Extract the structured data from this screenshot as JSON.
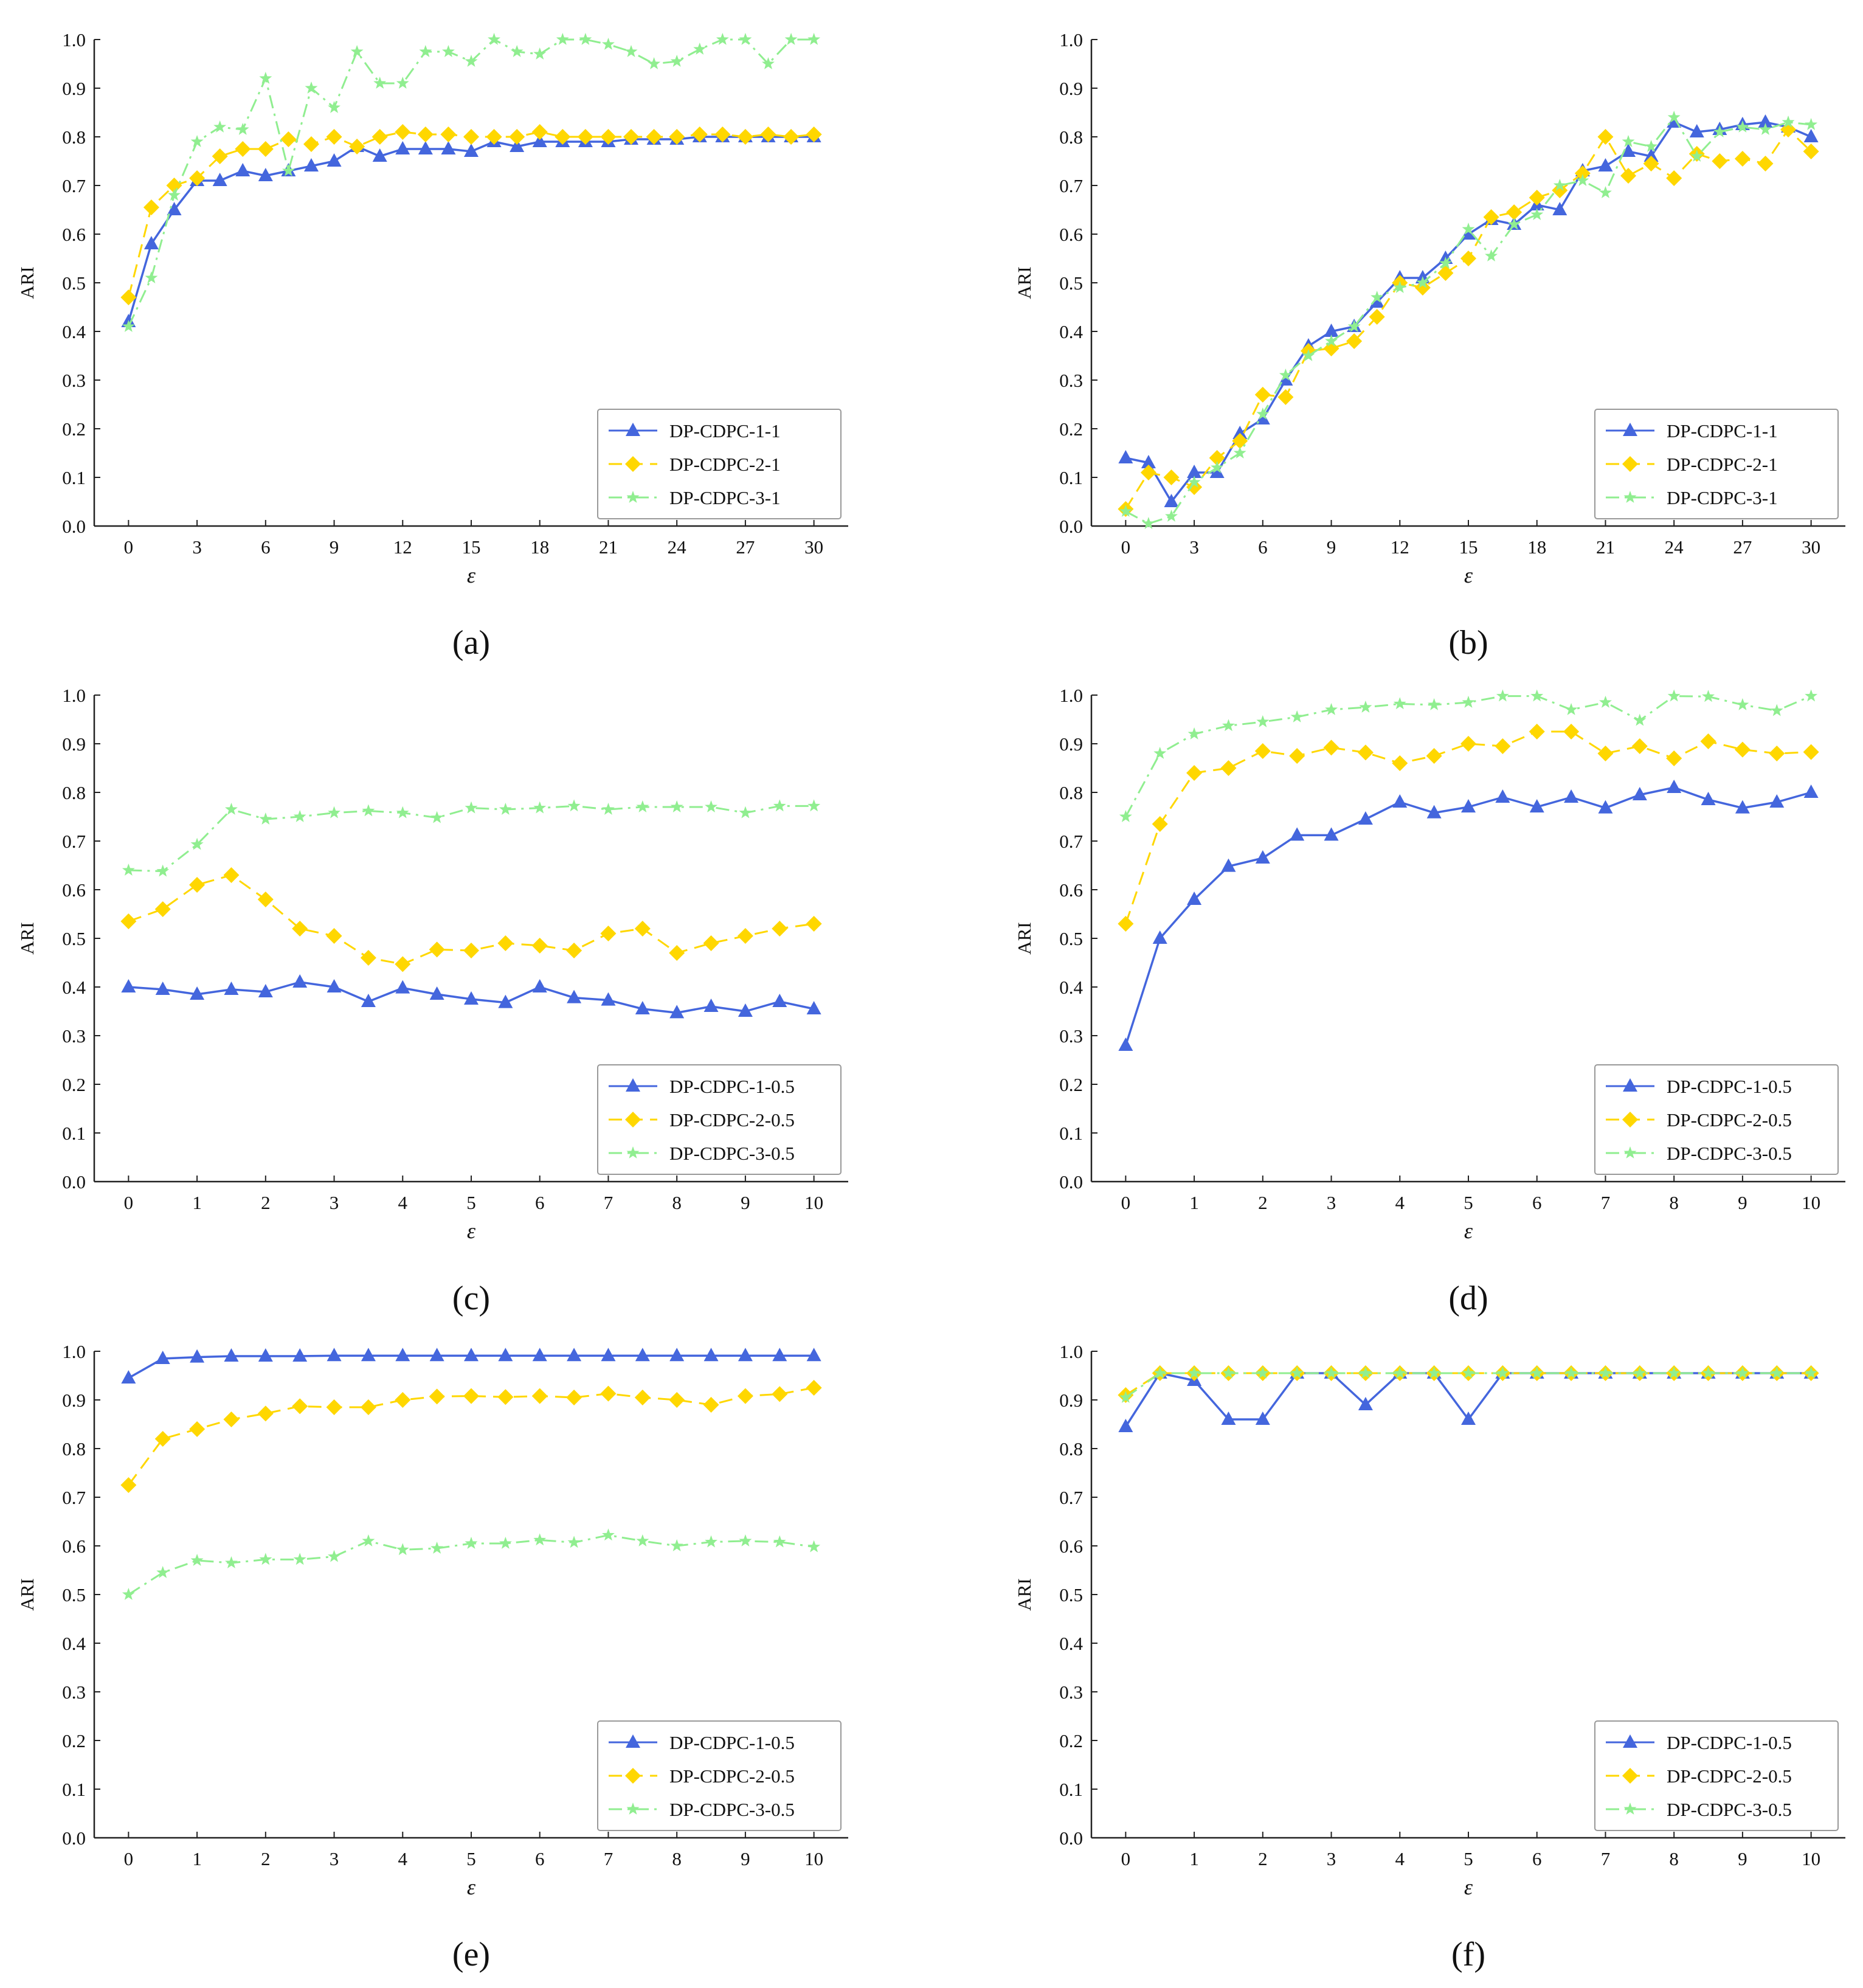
{
  "colors": {
    "series1": "#4466DD",
    "series2": "#FFD700",
    "series3": "#90EE90",
    "axis": "#222222"
  },
  "chart_data": [
    {
      "type": "line",
      "panel_label": "(a)",
      "xlabel": "ε",
      "ylabel": "ARI",
      "xlim": [
        -1.5,
        31.5
      ],
      "ylim": [
        0,
        1.0
      ],
      "xticks": [
        0,
        3,
        6,
        9,
        12,
        15,
        18,
        21,
        24,
        27,
        30
      ],
      "yticks": [
        0.0,
        0.1,
        0.2,
        0.3,
        0.4,
        0.5,
        0.6,
        0.7,
        0.8,
        0.9,
        1.0
      ],
      "legend_position": "lower-right",
      "x": [
        0,
        1,
        2,
        3,
        4,
        5,
        6,
        7,
        8,
        9,
        10,
        11,
        12,
        13,
        14,
        15,
        16,
        17,
        18,
        19,
        20,
        21,
        22,
        23,
        24,
        25,
        26,
        27,
        28,
        29,
        30
      ],
      "series": [
        {
          "name": "DP-CDPC-1-1",
          "values": [
            0.42,
            0.58,
            0.65,
            0.71,
            0.71,
            0.73,
            0.72,
            0.73,
            0.74,
            0.75,
            0.78,
            0.76,
            0.775,
            0.775,
            0.775,
            0.77,
            0.79,
            0.78,
            0.79,
            0.79,
            0.79,
            0.79,
            0.795,
            0.795,
            0.795,
            0.8,
            0.8,
            0.8,
            0.8,
            0.8,
            0.8
          ]
        },
        {
          "name": "DP-CDPC-2-1",
          "values": [
            0.47,
            0.655,
            0.7,
            0.715,
            0.76,
            0.775,
            0.775,
            0.795,
            0.785,
            0.8,
            0.78,
            0.8,
            0.81,
            0.805,
            0.805,
            0.8,
            0.8,
            0.8,
            0.81,
            0.8,
            0.8,
            0.8,
            0.8,
            0.8,
            0.8,
            0.805,
            0.805,
            0.8,
            0.805,
            0.8,
            0.805
          ]
        },
        {
          "name": "DP-CDPC-3-1",
          "values": [
            0.41,
            0.51,
            0.68,
            0.79,
            0.82,
            0.815,
            0.92,
            0.73,
            0.9,
            0.86,
            0.975,
            0.91,
            0.91,
            0.975,
            0.975,
            0.955,
            1.0,
            0.975,
            0.97,
            1.0,
            1.0,
            0.99,
            0.975,
            0.95,
            0.955,
            0.98,
            1.0,
            1.0,
            0.95,
            1.0,
            1.0
          ]
        }
      ]
    },
    {
      "type": "line",
      "panel_label": "(b)",
      "xlabel": "ε",
      "ylabel": "ARI",
      "xlim": [
        -1.5,
        31.5
      ],
      "ylim": [
        0,
        1.0
      ],
      "xticks": [
        0,
        3,
        6,
        9,
        12,
        15,
        18,
        21,
        24,
        27,
        30
      ],
      "yticks": [
        0.0,
        0.1,
        0.2,
        0.3,
        0.4,
        0.5,
        0.6,
        0.7,
        0.8,
        0.9,
        1.0
      ],
      "legend_position": "lower-right",
      "x": [
        0,
        1,
        2,
        3,
        4,
        5,
        6,
        7,
        8,
        9,
        10,
        11,
        12,
        13,
        14,
        15,
        16,
        17,
        18,
        19,
        20,
        21,
        22,
        23,
        24,
        25,
        26,
        27,
        28,
        29,
        30
      ],
      "series": [
        {
          "name": "DP-CDPC-1-1",
          "values": [
            0.14,
            0.13,
            0.05,
            0.11,
            0.11,
            0.19,
            0.22,
            0.3,
            0.37,
            0.4,
            0.41,
            0.46,
            0.51,
            0.51,
            0.55,
            0.6,
            0.63,
            0.62,
            0.66,
            0.65,
            0.73,
            0.74,
            0.77,
            0.76,
            0.83,
            0.81,
            0.815,
            0.825,
            0.83,
            0.82,
            0.8
          ]
        },
        {
          "name": "DP-CDPC-2-1",
          "values": [
            0.035,
            0.11,
            0.1,
            0.08,
            0.14,
            0.175,
            0.27,
            0.265,
            0.36,
            0.365,
            0.38,
            0.43,
            0.5,
            0.49,
            0.52,
            0.55,
            0.635,
            0.645,
            0.675,
            0.69,
            0.725,
            0.8,
            0.72,
            0.745,
            0.715,
            0.765,
            0.75,
            0.755,
            0.745,
            0.815,
            0.77
          ]
        },
        {
          "name": "DP-CDPC-3-1",
          "values": [
            0.03,
            0.005,
            0.02,
            0.09,
            0.12,
            0.15,
            0.23,
            0.31,
            0.35,
            0.38,
            0.41,
            0.47,
            0.49,
            0.5,
            0.54,
            0.61,
            0.555,
            0.62,
            0.64,
            0.7,
            0.71,
            0.685,
            0.79,
            0.78,
            0.84,
            0.76,
            0.81,
            0.82,
            0.815,
            0.83,
            0.825
          ]
        }
      ]
    },
    {
      "type": "line",
      "panel_label": "(c)",
      "xlabel": "ε",
      "ylabel": "ARI",
      "xlim": [
        -0.5,
        10.5
      ],
      "ylim": [
        0,
        1.0
      ],
      "xticks": [
        0,
        1,
        2,
        3,
        4,
        5,
        6,
        7,
        8,
        9,
        10
      ],
      "yticks": [
        0.0,
        0.1,
        0.2,
        0.3,
        0.4,
        0.5,
        0.6,
        0.7,
        0.8,
        0.9,
        1.0
      ],
      "legend_position": "lower-right",
      "x": [
        0,
        0.5,
        1,
        1.5,
        2,
        2.5,
        3,
        3.5,
        4,
        4.5,
        5,
        5.5,
        6,
        6.5,
        7,
        7.5,
        8,
        8.5,
        9,
        9.5,
        10
      ],
      "series": [
        {
          "name": "DP-CDPC-1-0.5",
          "values": [
            0.4,
            0.395,
            0.385,
            0.395,
            0.39,
            0.41,
            0.4,
            0.37,
            0.398,
            0.385,
            0.375,
            0.368,
            0.4,
            0.378,
            0.373,
            0.355,
            0.347,
            0.36,
            0.35,
            0.37,
            0.355
          ]
        },
        {
          "name": "DP-CDPC-2-0.5",
          "values": [
            0.535,
            0.56,
            0.61,
            0.63,
            0.58,
            0.52,
            0.505,
            0.46,
            0.447,
            0.477,
            0.475,
            0.49,
            0.485,
            0.475,
            0.51,
            0.52,
            0.47,
            0.49,
            0.505,
            0.52,
            0.53
          ]
        },
        {
          "name": "DP-CDPC-3-0.5",
          "values": [
            0.64,
            0.638,
            0.693,
            0.765,
            0.745,
            0.75,
            0.758,
            0.762,
            0.758,
            0.748,
            0.768,
            0.765,
            0.768,
            0.772,
            0.765,
            0.77,
            0.77,
            0.77,
            0.758,
            0.772,
            0.772
          ]
        }
      ]
    },
    {
      "type": "line",
      "panel_label": "(d)",
      "xlabel": "ε",
      "ylabel": "ARI",
      "xlim": [
        -0.5,
        10.5
      ],
      "ylim": [
        0,
        1.0
      ],
      "xticks": [
        0,
        1,
        2,
        3,
        4,
        5,
        6,
        7,
        8,
        9,
        10
      ],
      "yticks": [
        0.0,
        0.1,
        0.2,
        0.3,
        0.4,
        0.5,
        0.6,
        0.7,
        0.8,
        0.9,
        1.0
      ],
      "legend_position": "lower-right",
      "x": [
        0,
        0.5,
        1,
        1.5,
        2,
        2.5,
        3,
        3.5,
        4,
        4.5,
        5,
        5.5,
        6,
        6.5,
        7,
        7.5,
        8,
        8.5,
        9,
        9.5,
        10
      ],
      "series": [
        {
          "name": "DP-CDPC-1-0.5",
          "values": [
            0.28,
            0.5,
            0.58,
            0.648,
            0.665,
            0.712,
            0.712,
            0.745,
            0.78,
            0.758,
            0.77,
            0.79,
            0.77,
            0.79,
            0.768,
            0.795,
            0.81,
            0.785,
            0.768,
            0.78,
            0.8
          ]
        },
        {
          "name": "DP-CDPC-2-0.5",
          "values": [
            0.53,
            0.735,
            0.84,
            0.85,
            0.885,
            0.875,
            0.892,
            0.882,
            0.86,
            0.875,
            0.9,
            0.895,
            0.925,
            0.925,
            0.88,
            0.895,
            0.87,
            0.905,
            0.888,
            0.88,
            0.883
          ]
        },
        {
          "name": "DP-CDPC-3-0.5",
          "values": [
            0.75,
            0.88,
            0.92,
            0.937,
            0.945,
            0.955,
            0.97,
            0.975,
            0.982,
            0.98,
            0.985,
            0.998,
            0.998,
            0.97,
            0.985,
            0.948,
            0.998,
            0.997,
            0.98,
            0.968,
            0.998
          ]
        }
      ]
    },
    {
      "type": "line",
      "panel_label": "(e)",
      "xlabel": "ε",
      "ylabel": "ARI",
      "xlim": [
        -0.5,
        10.5
      ],
      "ylim": [
        0,
        1.0
      ],
      "xticks": [
        0,
        1,
        2,
        3,
        4,
        5,
        6,
        7,
        8,
        9,
        10
      ],
      "yticks": [
        0.0,
        0.1,
        0.2,
        0.3,
        0.4,
        0.5,
        0.6,
        0.7,
        0.8,
        0.9,
        1.0
      ],
      "legend_position": "lower-right",
      "x": [
        0,
        0.5,
        1,
        1.5,
        2,
        2.5,
        3,
        3.5,
        4,
        4.5,
        5,
        5.5,
        6,
        6.5,
        7,
        7.5,
        8,
        8.5,
        9,
        9.5,
        10
      ],
      "series": [
        {
          "name": "DP-CDPC-1-0.5",
          "values": [
            0.945,
            0.985,
            0.988,
            0.99,
            0.99,
            0.99,
            0.991,
            0.991,
            0.991,
            0.991,
            0.991,
            0.991,
            0.991,
            0.991,
            0.991,
            0.991,
            0.991,
            0.991,
            0.991,
            0.991,
            0.991
          ]
        },
        {
          "name": "DP-CDPC-2-0.5",
          "values": [
            0.725,
            0.82,
            0.84,
            0.86,
            0.872,
            0.887,
            0.885,
            0.885,
            0.9,
            0.907,
            0.908,
            0.906,
            0.908,
            0.905,
            0.913,
            0.905,
            0.9,
            0.89,
            0.908,
            0.912,
            0.925
          ]
        },
        {
          "name": "DP-CDPC-3-0.5",
          "values": [
            0.5,
            0.545,
            0.57,
            0.565,
            0.572,
            0.572,
            0.578,
            0.61,
            0.592,
            0.595,
            0.605,
            0.605,
            0.612,
            0.607,
            0.622,
            0.61,
            0.6,
            0.608,
            0.61,
            0.608,
            0.598
          ]
        }
      ]
    },
    {
      "type": "line",
      "panel_label": "(f)",
      "xlabel": "ε",
      "ylabel": "ARI",
      "xlim": [
        -0.5,
        10.5
      ],
      "ylim": [
        0,
        1.0
      ],
      "xticks": [
        0,
        1,
        2,
        3,
        4,
        5,
        6,
        7,
        8,
        9,
        10
      ],
      "yticks": [
        0.0,
        0.1,
        0.2,
        0.3,
        0.4,
        0.5,
        0.6,
        0.7,
        0.8,
        0.9,
        1.0
      ],
      "legend_position": "lower-right",
      "x": [
        0,
        0.5,
        1,
        1.5,
        2,
        2.5,
        3,
        3.5,
        4,
        4.5,
        5,
        5.5,
        6,
        6.5,
        7,
        7.5,
        8,
        8.5,
        9,
        9.5,
        10
      ],
      "series": [
        {
          "name": "DP-CDPC-1-0.5",
          "values": [
            0.845,
            0.955,
            0.94,
            0.86,
            0.86,
            0.955,
            0.955,
            0.89,
            0.955,
            0.955,
            0.86,
            0.955,
            0.955,
            0.955,
            0.955,
            0.955,
            0.955,
            0.955,
            0.955,
            0.955,
            0.955
          ]
        },
        {
          "name": "DP-CDPC-2-0.5",
          "values": [
            0.91,
            0.955,
            0.955,
            0.955,
            0.955,
            0.955,
            0.955,
            0.955,
            0.955,
            0.955,
            0.955,
            0.955,
            0.955,
            0.955,
            0.955,
            0.955,
            0.955,
            0.955,
            0.955,
            0.955,
            0.955
          ]
        },
        {
          "name": "DP-CDPC-3-0.5",
          "values": [
            0.905,
            0.955,
            0.955,
            0.955,
            0.955,
            0.955,
            0.955,
            0.955,
            0.955,
            0.955,
            0.955,
            0.955,
            0.955,
            0.955,
            0.955,
            0.955,
            0.955,
            0.955,
            0.955,
            0.955,
            0.955
          ]
        }
      ]
    }
  ]
}
